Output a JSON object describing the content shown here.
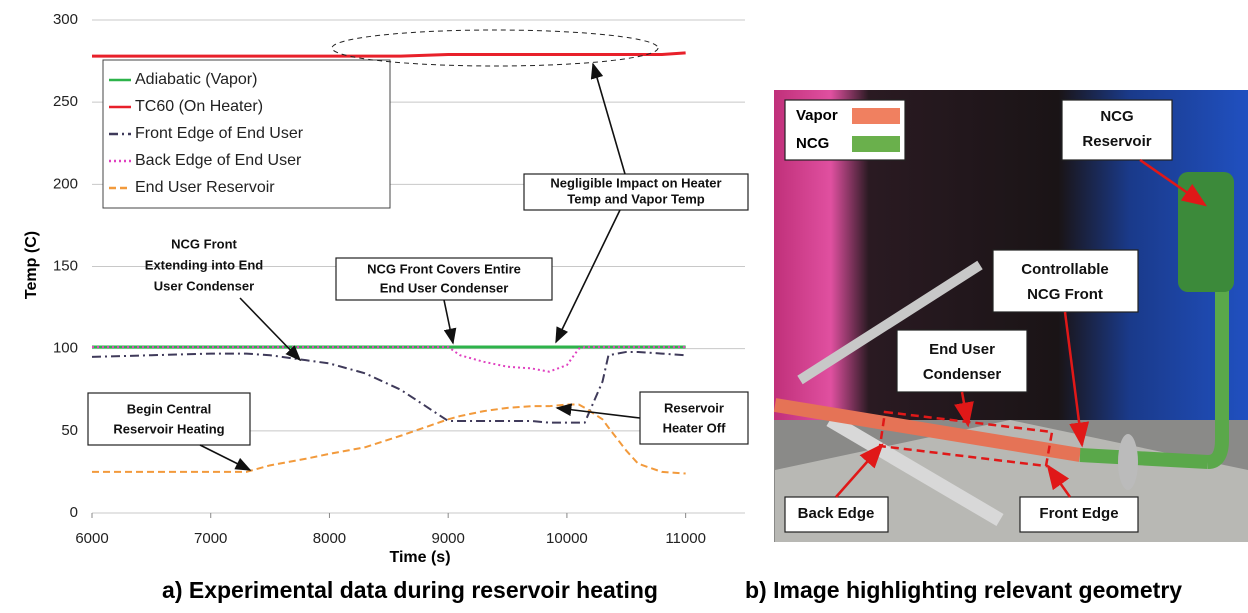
{
  "chart_data": {
    "type": "line",
    "xlabel": "Time (s)",
    "ylabel": "Temp (C)",
    "xlim": [
      6000,
      11500
    ],
    "xticks": [
      6000,
      7000,
      8000,
      9000,
      10000,
      11000
    ],
    "ylim": [
      0,
      300
    ],
    "yticks": [
      0,
      50,
      100,
      150,
      200,
      250,
      300
    ],
    "grid": true,
    "legend": "upper left",
    "x": [
      6000,
      6500,
      7000,
      7300,
      7500,
      7800,
      8000,
      8300,
      8600,
      9000,
      9100,
      9300,
      9500,
      9700,
      9850,
      10000,
      10100,
      10150,
      10300,
      10350,
      10500,
      10600,
      10800,
      11000
    ],
    "series": [
      {
        "name": "Adiabatic (Vapor)",
        "color": "#2db34a",
        "style": "solid",
        "values": [
          101,
          101,
          101,
          101,
          101,
          101,
          101,
          101,
          101,
          101,
          101,
          101,
          101,
          101,
          101,
          101,
          101,
          101,
          101,
          101,
          101,
          101,
          101,
          101
        ]
      },
      {
        "name": "TC60 (On Heater)",
        "color": "#e8202a",
        "style": "solid",
        "values": [
          278,
          278,
          278,
          278,
          278,
          278,
          278,
          278,
          278,
          279,
          279,
          279,
          279,
          279,
          279,
          279,
          279,
          279,
          279,
          279,
          279,
          279,
          279,
          280
        ]
      },
      {
        "name": "Front Edge of End User",
        "color": "#3f3a5a",
        "style": "dashdot",
        "values": [
          95,
          96,
          97,
          97,
          96,
          93,
          91,
          85,
          75,
          56,
          56,
          56,
          56,
          56,
          55,
          55,
          55,
          55,
          80,
          96,
          98,
          98,
          97,
          96
        ]
      },
      {
        "name": "Back Edge of End User",
        "color": "#e040c0",
        "style": "dotted",
        "values": [
          101,
          101,
          101,
          101,
          101,
          101,
          101,
          101,
          101,
          101,
          96,
          92,
          89,
          88,
          86,
          90,
          100,
          101,
          101,
          101,
          101,
          101,
          101,
          101
        ]
      },
      {
        "name": "End User Reservoir",
        "color": "#f29a3c",
        "style": "dashed",
        "values": [
          25,
          25,
          25,
          25,
          29,
          33,
          36,
          40,
          47,
          57,
          59,
          62,
          64,
          65,
          65,
          66,
          66,
          64,
          57,
          52,
          38,
          30,
          25,
          24
        ]
      }
    ],
    "annotations": [
      [
        "Negligible Impact on Heater",
        "Temp and Vapor Temp"
      ],
      [
        "NCG Front",
        "Extending into End",
        "User Condenser"
      ],
      [
        "NCG Front Covers Entire",
        "End User Condenser"
      ],
      [
        "Begin Central",
        "Reservoir Heating"
      ],
      [
        "Reservoir",
        "Heater Off"
      ]
    ]
  },
  "image_panel": {
    "legend": [
      "Vapor",
      "NCG"
    ],
    "labels": [
      [
        "NCG",
        "Reservoir"
      ],
      [
        "Controllable",
        "NCG Front"
      ],
      [
        "End User",
        "Condenser"
      ],
      [
        "Back Edge"
      ],
      [
        "Front Edge"
      ]
    ]
  },
  "captions": [
    "a) Experimental data during reservoir heating",
    "b) Image highlighting relevant geometry"
  ]
}
